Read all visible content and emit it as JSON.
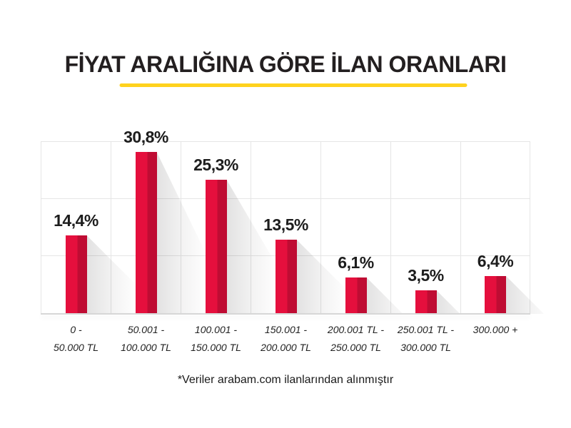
{
  "title": "FİYAT ARALIĞINA GÖRE İLAN ORANLARI",
  "footnote": "*Veriler arabam.com ilanlarından alınmıştır",
  "colors": {
    "bar_light": "#e50f3d",
    "bar_dark": "#bf0c33",
    "title_underline": "#ffd21e",
    "gridline": "#e5e5e5",
    "text": "#231f20"
  },
  "chart_data": {
    "type": "bar",
    "title": "FİYAT ARALIĞINA GÖRE İLAN ORANLARI",
    "categories": [
      "0 - 50.000 TL",
      "50.001 - 100.000 TL",
      "100.001 - 150.000 TL",
      "150.001 - 200.000 TL",
      "200.001 TL - 250.000 TL",
      "250.001 TL - 300.000 TL",
      "300.000 +"
    ],
    "category_label_lines": [
      [
        "0 -",
        "50.000 TL"
      ],
      [
        "50.001 -",
        "100.000 TL"
      ],
      [
        "100.001 -",
        "150.000 TL"
      ],
      [
        "150.001 -",
        "200.000 TL"
      ],
      [
        "200.001 TL -",
        "250.000 TL"
      ],
      [
        "250.001 TL -",
        "300.000 TL"
      ],
      [
        "300.000 +",
        ""
      ]
    ],
    "values": [
      14.4,
      30.8,
      25.3,
      13.5,
      6.1,
      3.5,
      6.4
    ],
    "value_labels": [
      "14,4%",
      "30,8%",
      "25,3%",
      "13,5%",
      "6,1%",
      "3,5%",
      "6,4%"
    ],
    "xlabel": "",
    "ylabel": "",
    "ylim": [
      0,
      33
    ],
    "grid": true,
    "legend": "none",
    "annotation": "*Veriler arabam.com ilanlarından alınmıştır"
  }
}
